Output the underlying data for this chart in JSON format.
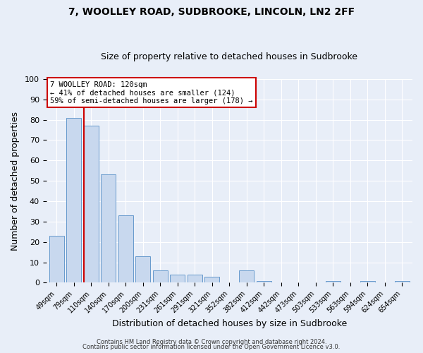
{
  "title1": "7, WOOLLEY ROAD, SUDBROOKE, LINCOLN, LN2 2FF",
  "title2": "Size of property relative to detached houses in Sudbrooke",
  "xlabel": "Distribution of detached houses by size in Sudbrooke",
  "ylabel": "Number of detached properties",
  "categories": [
    "49sqm",
    "79sqm",
    "110sqm",
    "140sqm",
    "170sqm",
    "200sqm",
    "231sqm",
    "261sqm",
    "291sqm",
    "321sqm",
    "352sqm",
    "382sqm",
    "412sqm",
    "442sqm",
    "473sqm",
    "503sqm",
    "533sqm",
    "563sqm",
    "594sqm",
    "624sqm",
    "654sqm"
  ],
  "values": [
    23,
    81,
    77,
    53,
    33,
    13,
    6,
    4,
    4,
    3,
    0,
    6,
    1,
    0,
    0,
    0,
    1,
    0,
    1,
    0,
    1
  ],
  "bar_color": "#c8d8ee",
  "bar_edge_color": "#6699cc",
  "vline_color": "#cc0000",
  "ylim": [
    0,
    100
  ],
  "annotation_title": "7 WOOLLEY ROAD: 120sqm",
  "annotation_line1": "← 41% of detached houses are smaller (124)",
  "annotation_line2": "59% of semi-detached houses are larger (178) →",
  "annotation_box_color": "#ffffff",
  "annotation_box_edge": "#cc0000",
  "footer1": "Contains HM Land Registry data © Crown copyright and database right 2024.",
  "footer2": "Contains public sector information licensed under the Open Government Licence v3.0.",
  "background_color": "#e8eef8",
  "plot_background": "#e8eef8"
}
